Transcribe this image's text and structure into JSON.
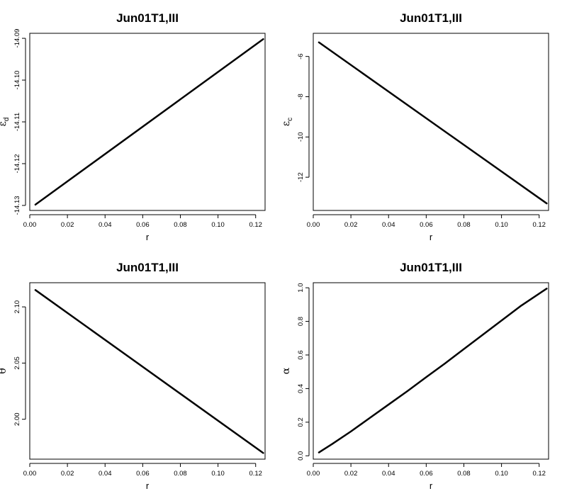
{
  "chart_data": [
    {
      "type": "line",
      "title": "Jun01T1,III",
      "xlabel": "r",
      "ylabel": "ε",
      "ylabel_sub": "d",
      "xlim": [
        0.0,
        0.125
      ],
      "ylim": [
        -14.1312,
        -14.0888
      ],
      "xticks": [
        0.0,
        0.02,
        0.04,
        0.06,
        0.08,
        0.1,
        0.12
      ],
      "xtick_labels": [
        "0.00",
        "0.02",
        "0.04",
        "0.06",
        "0.08",
        "0.10",
        "0.12"
      ],
      "yticks": [
        -14.13,
        -14.12,
        -14.11,
        -14.1,
        -14.09
      ],
      "ytick_labels": [
        "-14.13",
        "-14.12",
        "-14.11",
        "-14.10",
        "-14.09"
      ],
      "series": [
        {
          "x": [
            0.003,
            0.124
          ],
          "y": [
            -14.1298,
            -14.0902
          ]
        }
      ]
    },
    {
      "type": "line",
      "title": "Jun01T1,III",
      "xlabel": "r",
      "ylabel": "ε",
      "ylabel_sub": "c",
      "xlim": [
        0.0,
        0.125
      ],
      "ylim": [
        -13.65,
        -4.85
      ],
      "xticks": [
        0.0,
        0.02,
        0.04,
        0.06,
        0.08,
        0.1,
        0.12
      ],
      "xtick_labels": [
        "0.00",
        "0.02",
        "0.04",
        "0.06",
        "0.08",
        "0.10",
        "0.12"
      ],
      "yticks": [
        -12,
        -10,
        -8,
        -6
      ],
      "ytick_labels": [
        "-12",
        "-10",
        "-8",
        "-6"
      ],
      "series": [
        {
          "x": [
            0.003,
            0.124
          ],
          "y": [
            -5.3,
            -13.3
          ]
        }
      ]
    },
    {
      "type": "line",
      "title": "Jun01T1,III",
      "xlabel": "r",
      "ylabel": "θ",
      "ylabel_sub": "",
      "xlim": [
        0.0,
        0.125
      ],
      "ylim": [
        1.9645,
        2.1215
      ],
      "xticks": [
        0.0,
        0.02,
        0.04,
        0.06,
        0.08,
        0.1,
        0.12
      ],
      "xtick_labels": [
        "0.00",
        "0.02",
        "0.04",
        "0.06",
        "0.08",
        "0.10",
        "0.12"
      ],
      "yticks": [
        2.0,
        2.05,
        2.1
      ],
      "ytick_labels": [
        "2.00",
        "2.05",
        "2.10"
      ],
      "series": [
        {
          "x": [
            0.003,
            0.124
          ],
          "y": [
            2.115,
            1.97
          ]
        }
      ]
    },
    {
      "type": "line",
      "title": "Jun01T1,III",
      "xlabel": "r",
      "ylabel": "α",
      "ylabel_sub": "",
      "xlim": [
        0.0,
        0.125
      ],
      "ylim": [
        -0.02,
        1.03
      ],
      "xticks": [
        0.0,
        0.02,
        0.04,
        0.06,
        0.08,
        0.1,
        0.12
      ],
      "xtick_labels": [
        "0.00",
        "0.02",
        "0.04",
        "0.06",
        "0.08",
        "0.10",
        "0.12"
      ],
      "yticks": [
        0.0,
        0.2,
        0.4,
        0.6,
        0.8,
        1.0
      ],
      "ytick_labels": [
        "0.0",
        "0.2",
        "0.4",
        "0.6",
        "0.8",
        "1.0"
      ],
      "series": [
        {
          "x": [
            0.003,
            0.01,
            0.02,
            0.03,
            0.04,
            0.05,
            0.06,
            0.07,
            0.08,
            0.09,
            0.1,
            0.11,
            0.124
          ],
          "y": [
            0.02,
            0.07,
            0.145,
            0.225,
            0.305,
            0.385,
            0.468,
            0.55,
            0.635,
            0.72,
            0.805,
            0.89,
            0.995
          ]
        }
      ]
    }
  ]
}
